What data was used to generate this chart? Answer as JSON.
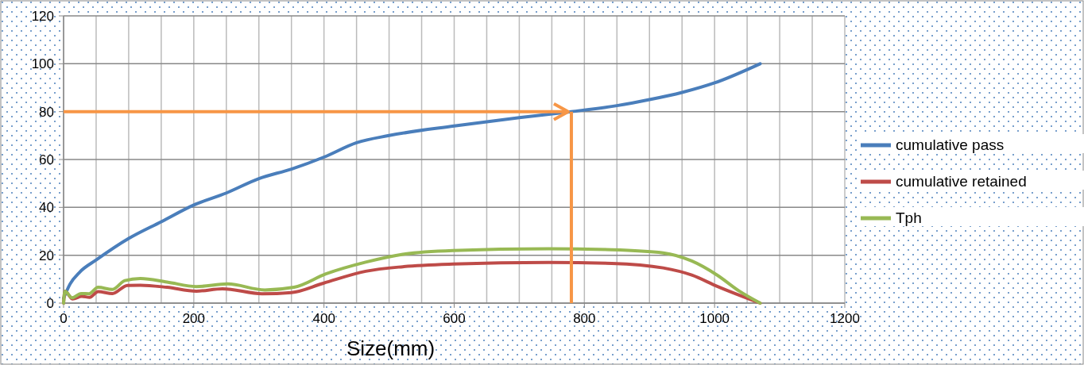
{
  "chart_data": {
    "type": "line",
    "xlabel": "Size(mm)",
    "xlim": [
      0,
      1200
    ],
    "xticks": [
      0,
      200,
      400,
      600,
      800,
      1000,
      1200
    ],
    "ylim": [
      0,
      120
    ],
    "yticks": [
      0,
      20,
      40,
      60,
      80,
      100,
      120
    ],
    "grid": true,
    "legend": "right",
    "marker": "none",
    "line_style": "solid",
    "series": [
      {
        "name": "cumulative pass",
        "color": "#4a7ebb",
        "x": [
          0,
          10,
          25,
          50,
          100,
          150,
          200,
          250,
          300,
          350,
          400,
          450,
          500,
          600,
          700,
          780,
          850,
          900,
          950,
          1000,
          1070
        ],
        "values": [
          2,
          8,
          13,
          18,
          27,
          34,
          41,
          46,
          52,
          56,
          61,
          67,
          70,
          74,
          77.5,
          80,
          82.5,
          85,
          88,
          92,
          100
        ]
      },
      {
        "name": "cumulative retained",
        "color": "#be4b48",
        "x": [
          0,
          2,
          14,
          28,
          40,
          53,
          75,
          98,
          118,
          159,
          204,
          244,
          305,
          350,
          399,
          464,
          521,
          598,
          745,
          842,
          921,
          965,
          1004,
          1070
        ],
        "values": [
          0,
          5,
          1.7,
          2.8,
          2.4,
          4.8,
          4,
          7.4,
          7.5,
          6.6,
          5,
          6,
          3.9,
          4.4,
          8.3,
          13.3,
          15.2,
          16.3,
          17,
          16.6,
          14.7,
          11.7,
          7,
          0
        ]
      },
      {
        "name": "Tph",
        "color": "#98b954",
        "x": [
          0,
          2,
          13,
          27,
          39,
          53,
          75,
          94,
          118,
          159,
          204,
          252,
          309,
          354,
          403,
          464,
          521,
          598,
          745,
          842,
          921,
          965,
          1004,
          1038,
          1070
        ],
        "values": [
          0,
          5,
          2.2,
          4,
          3.9,
          6.6,
          5.7,
          9.4,
          10.3,
          8.8,
          6.9,
          8,
          5.5,
          6.6,
          12.2,
          17.1,
          20.4,
          22,
          22.7,
          22.3,
          21,
          17.6,
          11.7,
          5,
          0
        ]
      }
    ],
    "ref_lines": [
      {
        "axis": "y",
        "value": 80,
        "color": "#f79646"
      },
      {
        "axis": "x",
        "value": 780,
        "color": "#f79646"
      }
    ]
  }
}
